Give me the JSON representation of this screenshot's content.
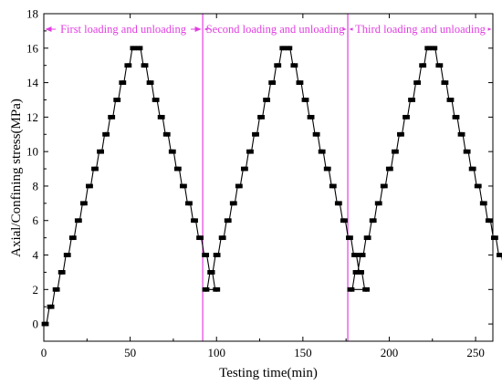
{
  "chart_data": {
    "type": "line",
    "title": "",
    "xlabel": "Testing time(min)",
    "ylabel": "Axial/Confining stress(MPa)",
    "xlim": [
      0,
      260
    ],
    "ylim": [
      -1,
      18
    ],
    "xticks": [
      0,
      50,
      100,
      150,
      200,
      250
    ],
    "yticks": [
      0,
      2,
      4,
      6,
      8,
      10,
      12,
      14,
      16,
      18
    ],
    "grid": false,
    "legend": "none",
    "colors": {
      "series": "#000000",
      "phase": "#e040e0"
    },
    "phase_boundaries": [
      92,
      176
    ],
    "phases": [
      {
        "label": "First loading and unloading",
        "x_range": [
          0,
          92
        ]
      },
      {
        "label": "Second loading and unloading",
        "x_range": [
          92,
          176
        ]
      },
      {
        "label": "Third loading and unloading",
        "x_range": [
          176,
          260
        ]
      }
    ],
    "step_minutes": 1.6,
    "series": [
      {
        "cycles": [
          {
            "start": 0,
            "min": 0,
            "max": 16,
            "end": 2
          },
          {
            "start": 93,
            "min": 2,
            "max": 16,
            "end": 2
          },
          {
            "start": 177,
            "min": 2,
            "max": 16,
            "end": 2
          }
        ]
      }
    ]
  }
}
